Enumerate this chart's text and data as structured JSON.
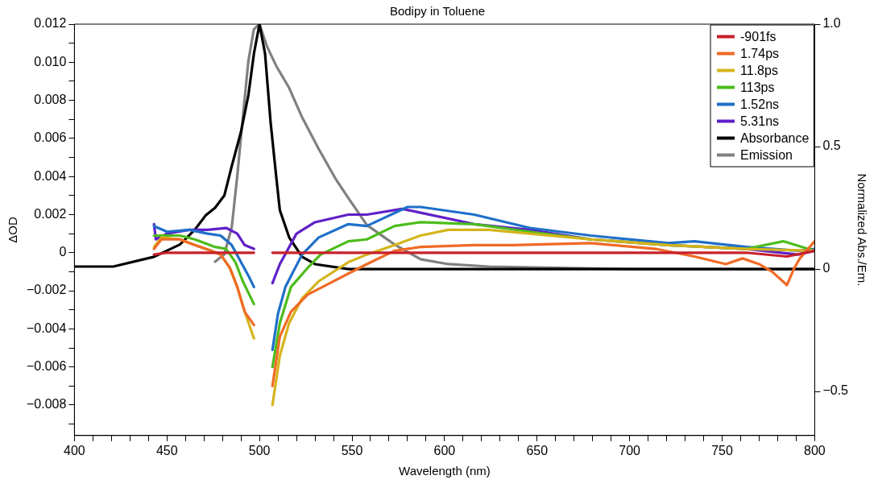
{
  "chart_data": {
    "type": "line",
    "title": "Bodipy in Toluene",
    "xlabel": "Wavelength (nm)",
    "ylabel": "ΔOD",
    "y2label": "Normalized Abs./Em.",
    "xlim": [
      400,
      800
    ],
    "xticks": [
      400,
      {
        "value": 410,
        "label": null
      },
      {
        "value": 420,
        "label": null
      },
      {
        "value": 430,
        "label": null
      },
      {
        "value": 440,
        "label": null
      },
      450,
      {
        "value": 460,
        "label": null
      },
      {
        "value": 470,
        "label": null
      },
      {
        "value": 480,
        "label": null
      },
      {
        "value": 490,
        "label": null
      },
      500,
      {
        "value": 510,
        "label": null
      },
      {
        "value": 520,
        "label": null
      },
      {
        "value": 530,
        "label": null
      },
      {
        "value": 540,
        "label": null
      },
      550,
      {
        "value": 560,
        "label": null
      },
      {
        "value": 570,
        "label": null
      },
      {
        "value": 580,
        "label": null
      },
      {
        "value": 590,
        "label": null
      },
      600,
      {
        "value": 610,
        "label": null
      },
      {
        "value": 620,
        "label": null
      },
      {
        "value": 630,
        "label": null
      },
      {
        "value": 640,
        "label": null
      },
      650,
      {
        "value": 660,
        "label": null
      },
      {
        "value": 670,
        "label": null
      },
      {
        "value": 680,
        "label": null
      },
      {
        "value": 690,
        "label": null
      },
      700,
      {
        "value": 710,
        "label": null
      },
      {
        "value": 720,
        "label": null
      },
      {
        "value": 730,
        "label": null
      },
      {
        "value": 740,
        "label": null
      },
      750,
      {
        "value": 760,
        "label": null
      },
      {
        "value": 770,
        "label": null
      },
      {
        "value": 780,
        "label": null
      },
      {
        "value": 790,
        "label": null
      },
      800
    ],
    "ylim": [
      -0.0096,
      0.012
    ],
    "yticks": [
      {
        "value": -0.009,
        "label": null
      },
      {
        "value": -0.008,
        "label": "−0.008"
      },
      {
        "value": -0.007,
        "label": null
      },
      {
        "value": -0.006,
        "label": "−0.006"
      },
      {
        "value": -0.005,
        "label": null
      },
      {
        "value": -0.004,
        "label": "−0.004"
      },
      {
        "value": -0.003,
        "label": null
      },
      {
        "value": -0.002,
        "label": "−0.002"
      },
      {
        "value": -0.001,
        "label": null
      },
      0,
      {
        "value": 0.001,
        "label": null
      },
      0.002,
      {
        "value": 0.003,
        "label": null
      },
      0.004,
      {
        "value": 0.005,
        "label": null
      },
      0.006,
      {
        "value": 0.007,
        "label": null
      },
      0.008,
      {
        "value": 0.009,
        "label": null
      },
      {
        "value": 0.01,
        "label": "0.010"
      },
      {
        "value": 0.011,
        "label": null
      },
      0.012
    ],
    "y2lim": [
      -0.68,
      1.0
    ],
    "y2ticks": [
      {
        "value": -0.5,
        "label": "−0.5"
      },
      0,
      0.5,
      {
        "value": 1,
        "label": "1.0"
      }
    ],
    "legend": "top right",
    "marker": "none",
    "series": [
      {
        "name": "-901fs",
        "color": "#c8202a",
        "x": [
          443,
          450,
          460,
          470,
          480,
          490,
          497,
          502,
          507,
          520,
          550,
          600,
          650,
          700,
          740,
          763,
          785,
          800
        ],
        "values": [
          -0.0001,
          0.0,
          0.0,
          0.0,
          0.0,
          0.0,
          0.0,
          null,
          0.0,
          0.0,
          0.0,
          0.0,
          0.0,
          0.0,
          0.0,
          0.0,
          -0.0002,
          0.0001
        ]
      },
      {
        "name": "1.74ps",
        "color": "#f06a25",
        "x": [
          443,
          447,
          457,
          465,
          474,
          479,
          484,
          488,
          492,
          497,
          502,
          507,
          511,
          517,
          526,
          538,
          548,
          558,
          573,
          587,
          616,
          637,
          679,
          714,
          735,
          752,
          761,
          770,
          777,
          785,
          789,
          792,
          800
        ],
        "values": [
          0.0002,
          0.0007,
          0.0007,
          0.0004,
          0.0001,
          -0.0001,
          -0.0008,
          -0.0018,
          -0.0031,
          -0.0038,
          null,
          -0.007,
          -0.0044,
          -0.0031,
          -0.0022,
          -0.0016,
          -0.0011,
          -0.0006,
          0.0001,
          0.0003,
          0.0004,
          0.0004,
          0.0005,
          0.0002,
          -0.0002,
          -0.0006,
          -0.0003,
          -0.0006,
          -0.001,
          -0.0017,
          -0.0008,
          -0.0003,
          0.0006
        ]
      },
      {
        "name": "11.8ps",
        "color": "#d4b41c",
        "x": [
          443,
          447,
          457,
          465,
          474,
          479,
          484,
          488,
          492,
          497,
          502,
          507,
          511,
          516,
          523,
          532,
          548,
          558,
          573,
          587,
          602,
          624,
          646,
          679,
          721,
          763,
          800
        ],
        "values": [
          0.0003,
          0.0008,
          0.0007,
          0.0004,
          0.0001,
          -0.0001,
          -0.0008,
          -0.0018,
          -0.0031,
          -0.0045,
          null,
          -0.008,
          -0.0054,
          -0.0037,
          -0.0024,
          -0.0015,
          -0.0005,
          -0.0001,
          0.0004,
          0.0009,
          0.0012,
          0.0012,
          0.001,
          0.0007,
          0.0004,
          0.0002,
          0.0001
        ]
      },
      {
        "name": "113ps",
        "color": "#4cbc1c",
        "x": [
          443,
          457,
          465,
          476,
          482,
          487,
          491,
          497,
          502,
          507,
          511,
          517,
          526,
          533,
          548,
          558,
          573,
          587,
          616,
          646,
          679,
          721,
          763,
          783,
          800
        ],
        "values": [
          0.0009,
          0.0009,
          0.0007,
          0.0003,
          0.0002,
          -0.0005,
          -0.0015,
          -0.0027,
          null,
          -0.006,
          -0.0037,
          -0.0018,
          -0.0008,
          -0.0001,
          0.0006,
          0.0007,
          0.0014,
          0.0016,
          0.0015,
          0.0011,
          0.0007,
          0.0004,
          0.0002,
          0.0006,
          0.0001
        ]
      },
      {
        "name": "1.52ns",
        "color": "#1f6fc8",
        "x": [
          443,
          450,
          462,
          472,
          479,
          485,
          490,
          494,
          497,
          502,
          507,
          510,
          514,
          523,
          532,
          548,
          558,
          580,
          587,
          616,
          646,
          679,
          721,
          735,
          763,
          791,
          800
        ],
        "values": [
          0.0014,
          0.0011,
          0.0012,
          0.001,
          0.0009,
          0.0004,
          -0.0005,
          -0.0012,
          -0.0018,
          null,
          -0.0051,
          -0.0032,
          -0.0018,
          -0.0001,
          0.0008,
          0.0015,
          0.0014,
          0.0024,
          0.0024,
          0.002,
          0.0013,
          0.0009,
          0.0005,
          0.0006,
          0.0003,
          0.0001,
          0.0002
        ]
      },
      {
        "name": "5.31ns",
        "color": "#6020c8",
        "x": [
          443,
          444,
          450,
          462,
          472,
          482,
          488,
          492,
          497,
          502,
          507,
          511,
          520,
          530,
          548,
          558,
          577,
          587,
          616,
          646,
          679,
          721,
          763,
          791,
          800
        ],
        "values": [
          0.0015,
          0.0007,
          0.001,
          0.0012,
          0.0012,
          0.0013,
          0.001,
          0.0004,
          0.0002,
          null,
          -0.0016,
          -0.0006,
          0.001,
          0.0016,
          0.002,
          0.002,
          0.0023,
          0.0021,
          0.0015,
          0.0012,
          0.0007,
          0.0004,
          0.0002,
          -0.0001,
          0.0001
        ]
      },
      {
        "name": "Absorbance",
        "color": "#000000",
        "axis": "y2",
        "x": [
          400,
          421,
          443,
          457,
          465,
          471,
          476,
          481,
          485,
          490,
          494,
          497,
          500,
          503,
          506,
          509,
          511,
          516,
          523,
          530,
          548,
          600,
          700,
          800
        ],
        "values": [
          0.01,
          0.01,
          0.05,
          0.1,
          0.16,
          0.22,
          0.25,
          0.3,
          0.42,
          0.56,
          0.71,
          0.88,
          1.0,
          0.88,
          0.6,
          0.38,
          0.24,
          0.13,
          0.05,
          0.02,
          0.0,
          0.0,
          0.0,
          0.0
        ]
      },
      {
        "name": "Emission",
        "color": "#808080",
        "axis": "y2",
        "x": [
          476,
          481,
          485,
          488,
          491,
          494,
          497,
          500,
          504,
          509,
          516,
          523,
          532,
          541,
          548,
          558,
          573,
          587,
          602,
          624,
          700,
          800
        ],
        "values": [
          0.03,
          0.06,
          0.17,
          0.38,
          0.62,
          0.85,
          0.98,
          1.0,
          0.91,
          0.83,
          0.74,
          0.62,
          0.49,
          0.37,
          0.29,
          0.18,
          0.1,
          0.04,
          0.02,
          0.01,
          0.0,
          0.0
        ]
      }
    ]
  }
}
